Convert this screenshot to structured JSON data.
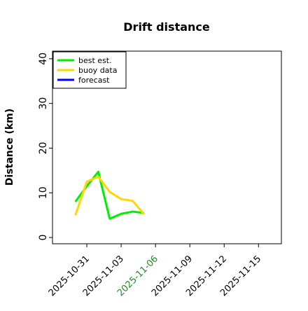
{
  "chart_data": {
    "type": "line",
    "title": "Drift distance",
    "ylabel": "Distance (km)",
    "x": [
      "2025-10-30",
      "2025-10-31",
      "2025-11-01",
      "2025-11-02",
      "2025-11-03",
      "2025-11-04",
      "2025-11-05"
    ],
    "series": [
      {
        "name": "best est.",
        "color": "#00ee00",
        "values": [
          8,
          11.5,
          14.7,
          4.2,
          5.3,
          5.8,
          5.5
        ]
      },
      {
        "name": "buoy data",
        "color": "#ffd700",
        "values": [
          5,
          12.5,
          13.6,
          10.2,
          8.6,
          8.2,
          5.2
        ]
      },
      {
        "name": "forecast",
        "color": "#0000ff",
        "values": [
          null,
          null,
          null,
          null,
          null,
          null,
          null
        ]
      }
    ],
    "xlim": [
      "2025-10-28",
      "2025-11-17"
    ],
    "xticks": [
      "2025-10-31",
      "2025-11-03",
      "2025-11-06",
      "2025-11-09",
      "2025-11-12",
      "2025-11-15"
    ],
    "xtick_colors": [
      "#000000",
      "#000000",
      "#228b22",
      "#000000",
      "#000000",
      "#000000"
    ],
    "ylim": [
      -1.4,
      41.7
    ],
    "yticks": [
      0,
      10,
      20,
      30,
      40
    ],
    "legend": "upper left",
    "grid": false
  }
}
